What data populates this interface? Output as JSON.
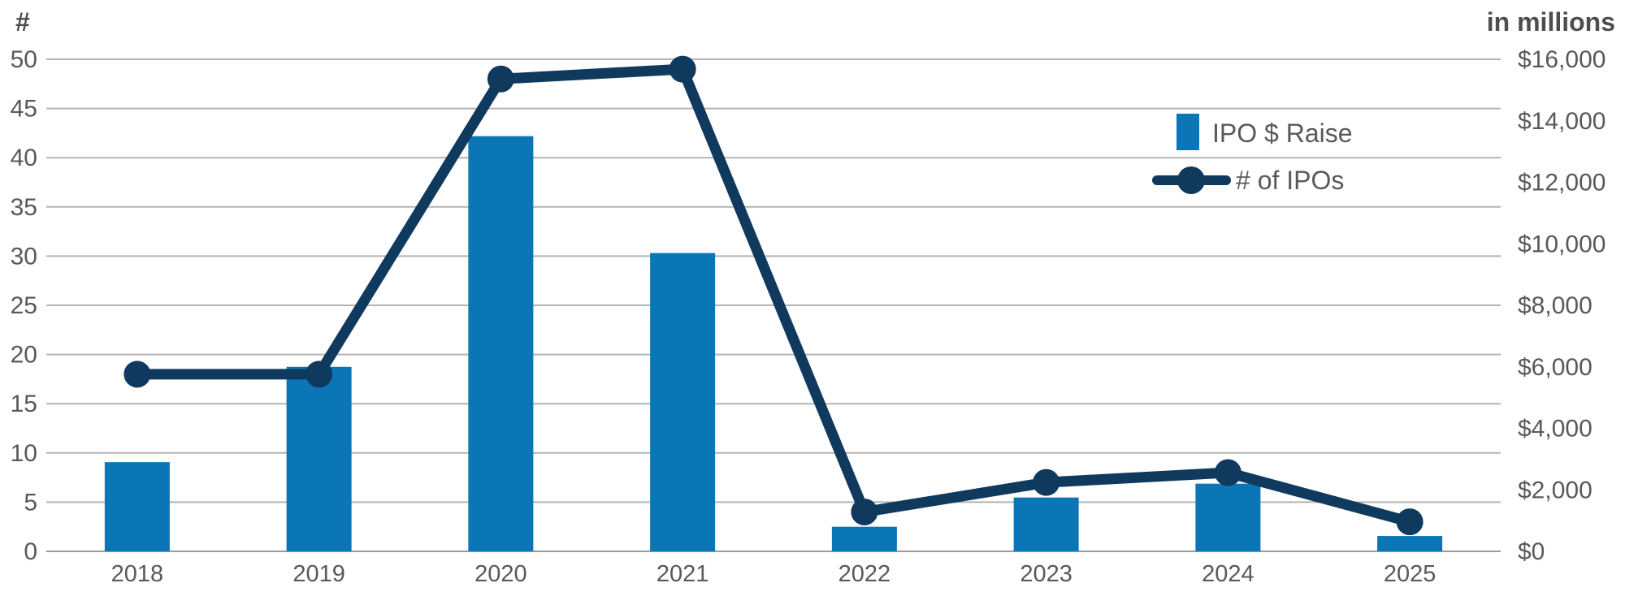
{
  "chart_data": {
    "type": "combo-bar-line",
    "categories": [
      "2018",
      "2019",
      "2020",
      "2021",
      "2022",
      "2023",
      "2024",
      "2025"
    ],
    "series": [
      {
        "name": "IPO $ Raise",
        "type": "bar",
        "axis": "right",
        "color": "#0a76b6",
        "values": [
          2900,
          6000,
          13500,
          9700,
          800,
          1750,
          2200,
          500
        ]
      },
      {
        "name": "# of IPOs",
        "type": "line",
        "axis": "left",
        "color": "#10395e",
        "values": [
          18,
          18,
          48,
          49,
          4,
          7,
          8,
          3
        ]
      }
    ],
    "left_axis": {
      "title": "#",
      "min": 0,
      "max": 50,
      "step": 5,
      "ticks": [
        "0",
        "5",
        "10",
        "15",
        "20",
        "25",
        "30",
        "35",
        "40",
        "45",
        "50"
      ]
    },
    "right_axis": {
      "title": "in millions",
      "min": 0,
      "max": 16000,
      "step": 2000,
      "ticks": [
        "$0",
        "$2,000",
        "$4,000",
        "$6,000",
        "$8,000",
        "$10,000",
        "$12,000",
        "$14,000",
        "$16,000"
      ]
    },
    "legend": {
      "position": "inside-right",
      "items": [
        "IPO $ Raise",
        "# of IPOs"
      ]
    },
    "grid": true,
    "styles": {
      "grid_color": "#b3b3b3",
      "baseline_color": "#9b9b9b",
      "tick_color": "#595959",
      "header_color": "#4d4d4d",
      "label_color": "#595959"
    }
  }
}
